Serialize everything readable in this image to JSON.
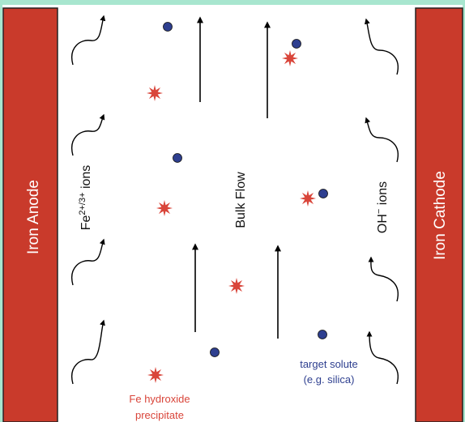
{
  "electrodes": {
    "anode_label": "Iron Anode",
    "cathode_label": "Iron Cathode"
  },
  "labels": {
    "fe_ions_base": "Fe",
    "fe_ions_sup": "2+/3+",
    "fe_ions_suffix": " ions",
    "bulk_flow": "Bulk Flow",
    "oh_ions_base": "OH",
    "oh_ions_sup": "−",
    "oh_ions_suffix": " ions",
    "precipitate_line1": "Fe hydroxide",
    "precipitate_line2": "precipitate",
    "solute_line1": "target solute",
    "solute_line2": "(e.g. silica)"
  },
  "colors": {
    "frame_border": "#a8e6cf",
    "electrode_fill": "#c93a2b",
    "electrode_text": "#ffffff",
    "precipitate": "#d9453a",
    "solute": "#2e3f8f",
    "arrow": "#000000",
    "text": "#111111"
  },
  "icons": {
    "precipitate": "red-star-burst-icon",
    "solute": "blue-dot-icon",
    "ion_arrow": "curved-arrow-icon",
    "flow_arrow": "up-arrow-icon"
  }
}
